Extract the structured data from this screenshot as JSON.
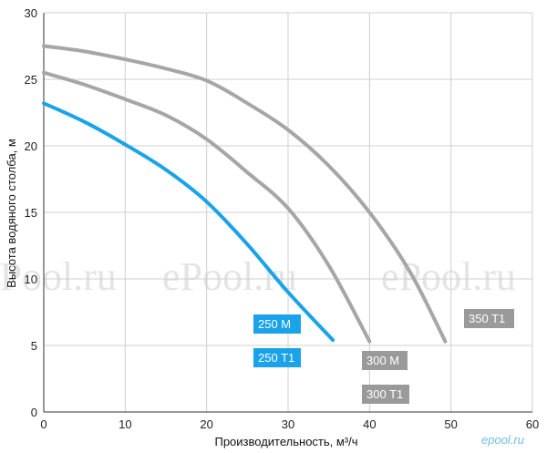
{
  "chart_data": {
    "type": "line",
    "xlabel": "Производительность, м³/ч",
    "ylabel": "Высота водяного столба, м",
    "xlim": [
      0,
      60
    ],
    "ylim": [
      0,
      30
    ],
    "x_ticks": [
      "0",
      "10",
      "20",
      "30",
      "40",
      "50",
      "60"
    ],
    "y_ticks": [
      "0",
      "5",
      "10",
      "15",
      "20",
      "25",
      "30"
    ],
    "grid": true,
    "series": [
      {
        "color": "#1aa3e8",
        "x": [
          0,
          5,
          10,
          15,
          20,
          25,
          30,
          35.5
        ],
        "y": [
          23.2,
          21.8,
          20.1,
          18.2,
          15.8,
          12.6,
          9.0,
          5.4
        ]
      },
      {
        "color": "#a6a6a6",
        "x": [
          0,
          5,
          10,
          15,
          20,
          25,
          30,
          35,
          40
        ],
        "y": [
          25.5,
          24.6,
          23.5,
          22.3,
          20.5,
          18.0,
          15.3,
          11.0,
          5.3
        ]
      },
      {
        "color": "#a6a6a6",
        "x": [
          0,
          5,
          10,
          15,
          20,
          25,
          30,
          35,
          40,
          45,
          49.3
        ],
        "y": [
          27.5,
          27.1,
          26.5,
          25.8,
          24.9,
          23.2,
          21.2,
          18.5,
          15.0,
          10.5,
          5.3
        ]
      }
    ],
    "labels": [
      {
        "text": "250 M",
        "color": "#1aa3e8"
      },
      {
        "text": "250 T1",
        "color": "#1aa3e8"
      },
      {
        "text": "300 M",
        "color": "#9a9a9a"
      },
      {
        "text": "300 T1",
        "color": "#9a9a9a"
      },
      {
        "text": "350 T1",
        "color": "#9a9a9a"
      }
    ]
  },
  "watermark": {
    "text": "ePool.ru"
  },
  "brand": {
    "text": "epool.ru"
  }
}
